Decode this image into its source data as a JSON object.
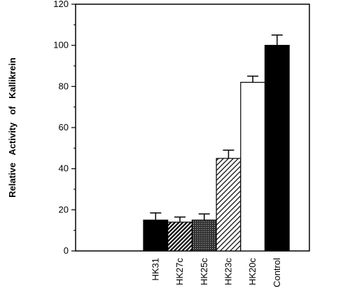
{
  "chart_data": {
    "type": "bar",
    "y_label": "Relative   Activity   of   Kallikrein",
    "categories": [
      "HK31",
      "HK27c",
      "HK25c",
      "HK23c",
      "HK20c",
      "Control"
    ],
    "values": [
      15,
      14,
      15,
      45,
      82,
      100
    ],
    "errors": [
      3.5,
      2.5,
      3,
      4,
      3,
      5
    ],
    "fills": [
      "solid",
      "dense-hatch",
      "dots",
      "hatch",
      "none",
      "solid"
    ],
    "color": "#000000",
    "ylim": [
      0,
      120
    ],
    "yticks": [
      0,
      20,
      40,
      60,
      80,
      100,
      120
    ],
    "grid": false
  }
}
